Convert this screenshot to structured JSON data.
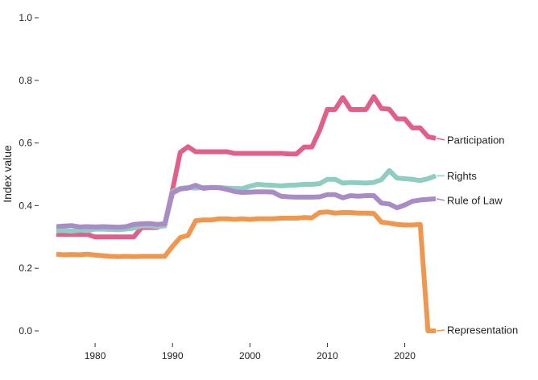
{
  "chart_data": {
    "type": "line",
    "title": "",
    "xlabel": "",
    "ylabel": "Index value",
    "xlim": [
      1975,
      2024
    ],
    "ylim": [
      0.0,
      1.0
    ],
    "x_ticks": [
      1980,
      1990,
      2000,
      2010,
      2020
    ],
    "y_ticks": [
      0.0,
      0.2,
      0.4,
      0.6,
      0.8,
      1.0
    ],
    "x_tick_labels": [
      "1980",
      "1990",
      "2000",
      "2010",
      "2020"
    ],
    "y_tick_labels": [
      "0.0",
      "0.2",
      "0.4",
      "0.6",
      "0.8",
      "1.0"
    ],
    "grid": false,
    "legend": "direct-labels-right",
    "x": [
      1975,
      1976,
      1977,
      1978,
      1979,
      1980,
      1981,
      1982,
      1983,
      1984,
      1985,
      1986,
      1987,
      1988,
      1989,
      1990,
      1991,
      1992,
      1993,
      1994,
      1995,
      1996,
      1997,
      1998,
      1999,
      2000,
      2001,
      2002,
      2003,
      2004,
      2005,
      2006,
      2007,
      2008,
      2009,
      2010,
      2011,
      2012,
      2013,
      2014,
      2015,
      2016,
      2017,
      2018,
      2019,
      2020,
      2021,
      2022,
      2023,
      2024
    ],
    "series": [
      {
        "name": "Participation",
        "color": "#e0608a",
        "values": [
          0.308,
          0.308,
          0.308,
          0.308,
          0.308,
          0.3,
          0.3,
          0.3,
          0.3,
          0.3,
          0.3,
          0.33,
          0.33,
          0.33,
          0.34,
          0.45,
          0.57,
          0.588,
          0.572,
          0.572,
          0.572,
          0.572,
          0.572,
          0.567,
          0.567,
          0.567,
          0.567,
          0.567,
          0.567,
          0.567,
          0.565,
          0.565,
          0.587,
          0.587,
          0.64,
          0.707,
          0.707,
          0.745,
          0.707,
          0.707,
          0.707,
          0.748,
          0.71,
          0.708,
          0.677,
          0.677,
          0.648,
          0.648,
          0.62,
          0.615
        ]
      },
      {
        "name": "Rights",
        "color": "#8ecdc1",
        "values": [
          0.32,
          0.32,
          0.318,
          0.322,
          0.32,
          0.325,
          0.325,
          0.324,
          0.323,
          0.325,
          0.328,
          0.335,
          0.335,
          0.333,
          0.335,
          0.445,
          0.455,
          0.458,
          0.456,
          0.458,
          0.458,
          0.458,
          0.456,
          0.455,
          0.454,
          0.462,
          0.468,
          0.466,
          0.465,
          0.463,
          0.465,
          0.466,
          0.468,
          0.468,
          0.47,
          0.484,
          0.484,
          0.472,
          0.474,
          0.473,
          0.472,
          0.474,
          0.483,
          0.512,
          0.488,
          0.486,
          0.484,
          0.48,
          0.486,
          0.495
        ]
      },
      {
        "name": "Rule of Law",
        "color": "#a98bc5",
        "values": [
          0.333,
          0.335,
          0.336,
          0.332,
          0.333,
          0.332,
          0.333,
          0.332,
          0.331,
          0.333,
          0.34,
          0.342,
          0.343,
          0.34,
          0.342,
          0.44,
          0.453,
          0.456,
          0.465,
          0.455,
          0.458,
          0.457,
          0.452,
          0.445,
          0.442,
          0.443,
          0.444,
          0.444,
          0.443,
          0.43,
          0.428,
          0.427,
          0.427,
          0.427,
          0.428,
          0.435,
          0.435,
          0.425,
          0.432,
          0.43,
          0.432,
          0.432,
          0.408,
          0.405,
          0.393,
          0.402,
          0.414,
          0.418,
          0.42,
          0.422
        ]
      },
      {
        "name": "Representation",
        "color": "#f0974f",
        "values": [
          0.245,
          0.243,
          0.244,
          0.243,
          0.245,
          0.242,
          0.24,
          0.238,
          0.237,
          0.238,
          0.237,
          0.238,
          0.238,
          0.238,
          0.238,
          0.27,
          0.298,
          0.305,
          0.352,
          0.354,
          0.354,
          0.358,
          0.358,
          0.356,
          0.358,
          0.356,
          0.358,
          0.358,
          0.358,
          0.36,
          0.36,
          0.36,
          0.362,
          0.361,
          0.378,
          0.38,
          0.376,
          0.378,
          0.378,
          0.376,
          0.376,
          0.375,
          0.347,
          0.344,
          0.34,
          0.338,
          0.338,
          0.34,
          0.0,
          0.0
        ]
      }
    ]
  }
}
